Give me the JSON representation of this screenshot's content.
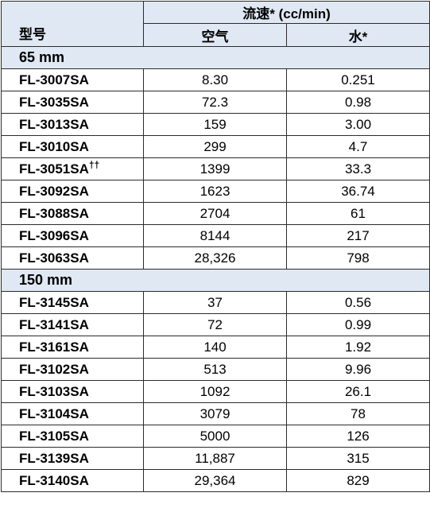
{
  "header": {
    "model_label": "型号",
    "flow_label": "流速* (cc/min)",
    "air_label": "空气",
    "water_label": "水*"
  },
  "sections": [
    {
      "title": "65 mm",
      "rows": [
        {
          "model": "FL-3007SA",
          "dagger": "",
          "air": "8.30",
          "water": "0.251"
        },
        {
          "model": "FL-3035SA",
          "dagger": "",
          "air": "72.3",
          "water": "0.98"
        },
        {
          "model": "FL-3013SA",
          "dagger": "",
          "air": "159",
          "water": "3.00"
        },
        {
          "model": "FL-3010SA",
          "dagger": "",
          "air": "299",
          "water": "4.7"
        },
        {
          "model": "FL-3051SA",
          "dagger": "††",
          "air": "1399",
          "water": "33.3"
        },
        {
          "model": "FL-3092SA",
          "dagger": "",
          "air": "1623",
          "water": "36.74"
        },
        {
          "model": "FL-3088SA",
          "dagger": "",
          "air": "2704",
          "water": "61"
        },
        {
          "model": "FL-3096SA",
          "dagger": "",
          "air": "8144",
          "water": "217"
        },
        {
          "model": "FL-3063SA",
          "dagger": "",
          "air": "28,326",
          "water": "798"
        }
      ]
    },
    {
      "title": "150 mm",
      "rows": [
        {
          "model": "FL-3145SA",
          "dagger": "",
          "air": "37",
          "water": "0.56"
        },
        {
          "model": "FL-3141SA",
          "dagger": "",
          "air": "72",
          "water": "0.99"
        },
        {
          "model": "FL-3161SA",
          "dagger": "",
          "air": "140",
          "water": "1.92"
        },
        {
          "model": "FL-3102SA",
          "dagger": "",
          "air": "513",
          "water": "9.96"
        },
        {
          "model": "FL-3103SA",
          "dagger": "",
          "air": "1092",
          "water": "26.1"
        },
        {
          "model": "FL-3104SA",
          "dagger": "",
          "air": "3079",
          "water": "78"
        },
        {
          "model": "FL-3105SA",
          "dagger": "",
          "air": "5000",
          "water": "126"
        },
        {
          "model": "FL-3139SA",
          "dagger": "",
          "air": "11,887",
          "water": "315"
        },
        {
          "model": "FL-3140SA",
          "dagger": "",
          "air": "29,364",
          "water": "829"
        }
      ]
    }
  ]
}
